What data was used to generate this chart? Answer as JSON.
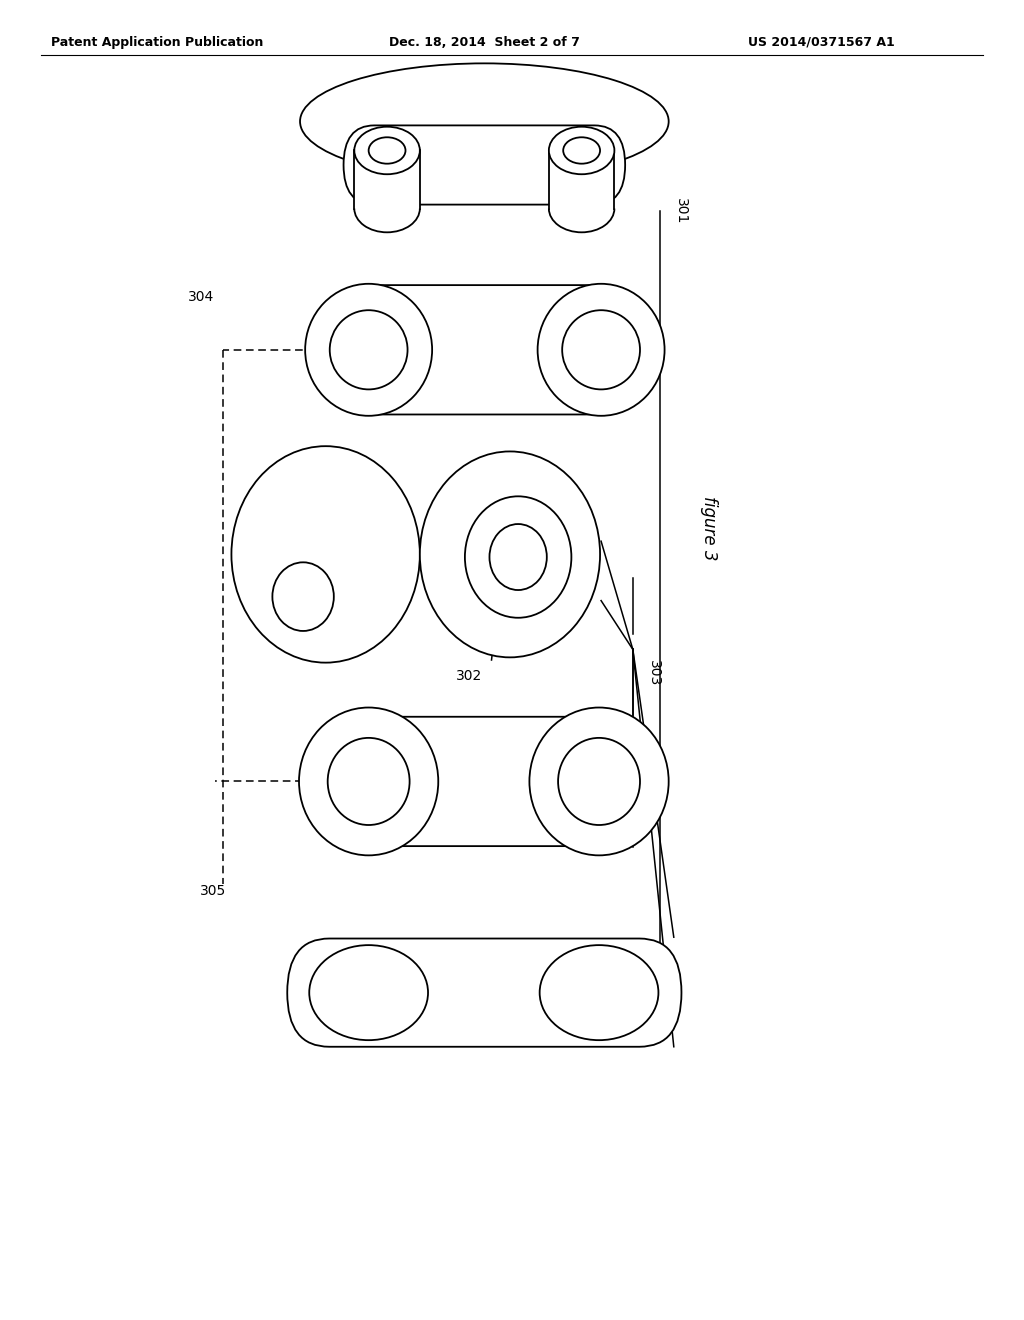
{
  "bg_color": "#ffffff",
  "header_left": "Patent Application Publication",
  "header_center": "Dec. 18, 2014  Sheet 2 of 7",
  "header_right": "US 2014/0371567 A1",
  "figure_label": "figure 3",
  "lc": "#000000",
  "lw": 1.3
}
